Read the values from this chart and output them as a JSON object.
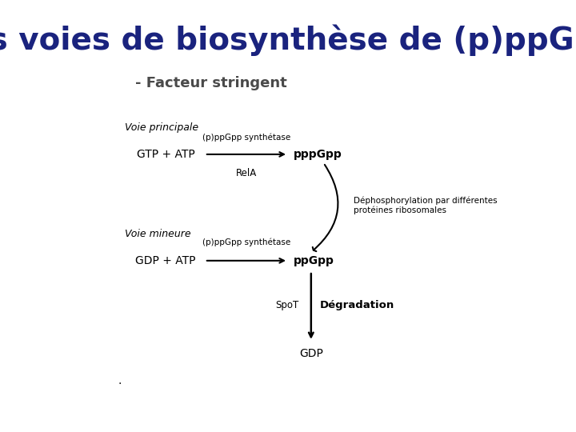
{
  "title": "les voies de biosynthèse de (p)ppGpp",
  "title_color": "#1a237e",
  "title_fontsize": 28,
  "subtitle": "- Facteur stringent",
  "subtitle_color": "#4a4a4a",
  "subtitle_fontsize": 13,
  "bg_color": "#ffffff",
  "text_color": "#000000",
  "voie_principale_label": "Voie principale",
  "voie_mineure_label": "Voie mineure",
  "reaction1_left": "GTP + ATP",
  "reaction1_enzyme_top": "(p)ppGpp synthétase",
  "reaction1_enzyme_bottom": "RelA",
  "reaction1_right": "pppGpp",
  "reaction2_left": "GDP + ATP",
  "reaction2_enzyme_top": "(p)ppGpp synthétase",
  "reaction2_right": "ppGpp",
  "degradation_enzyme": "SpoT",
  "degradation_label": "Dégradation",
  "degradation_product": "GDP",
  "dephospho_label": "Déphosphorylation par différentes\nprotéines ribosomales",
  "arrow_color": "#000000"
}
